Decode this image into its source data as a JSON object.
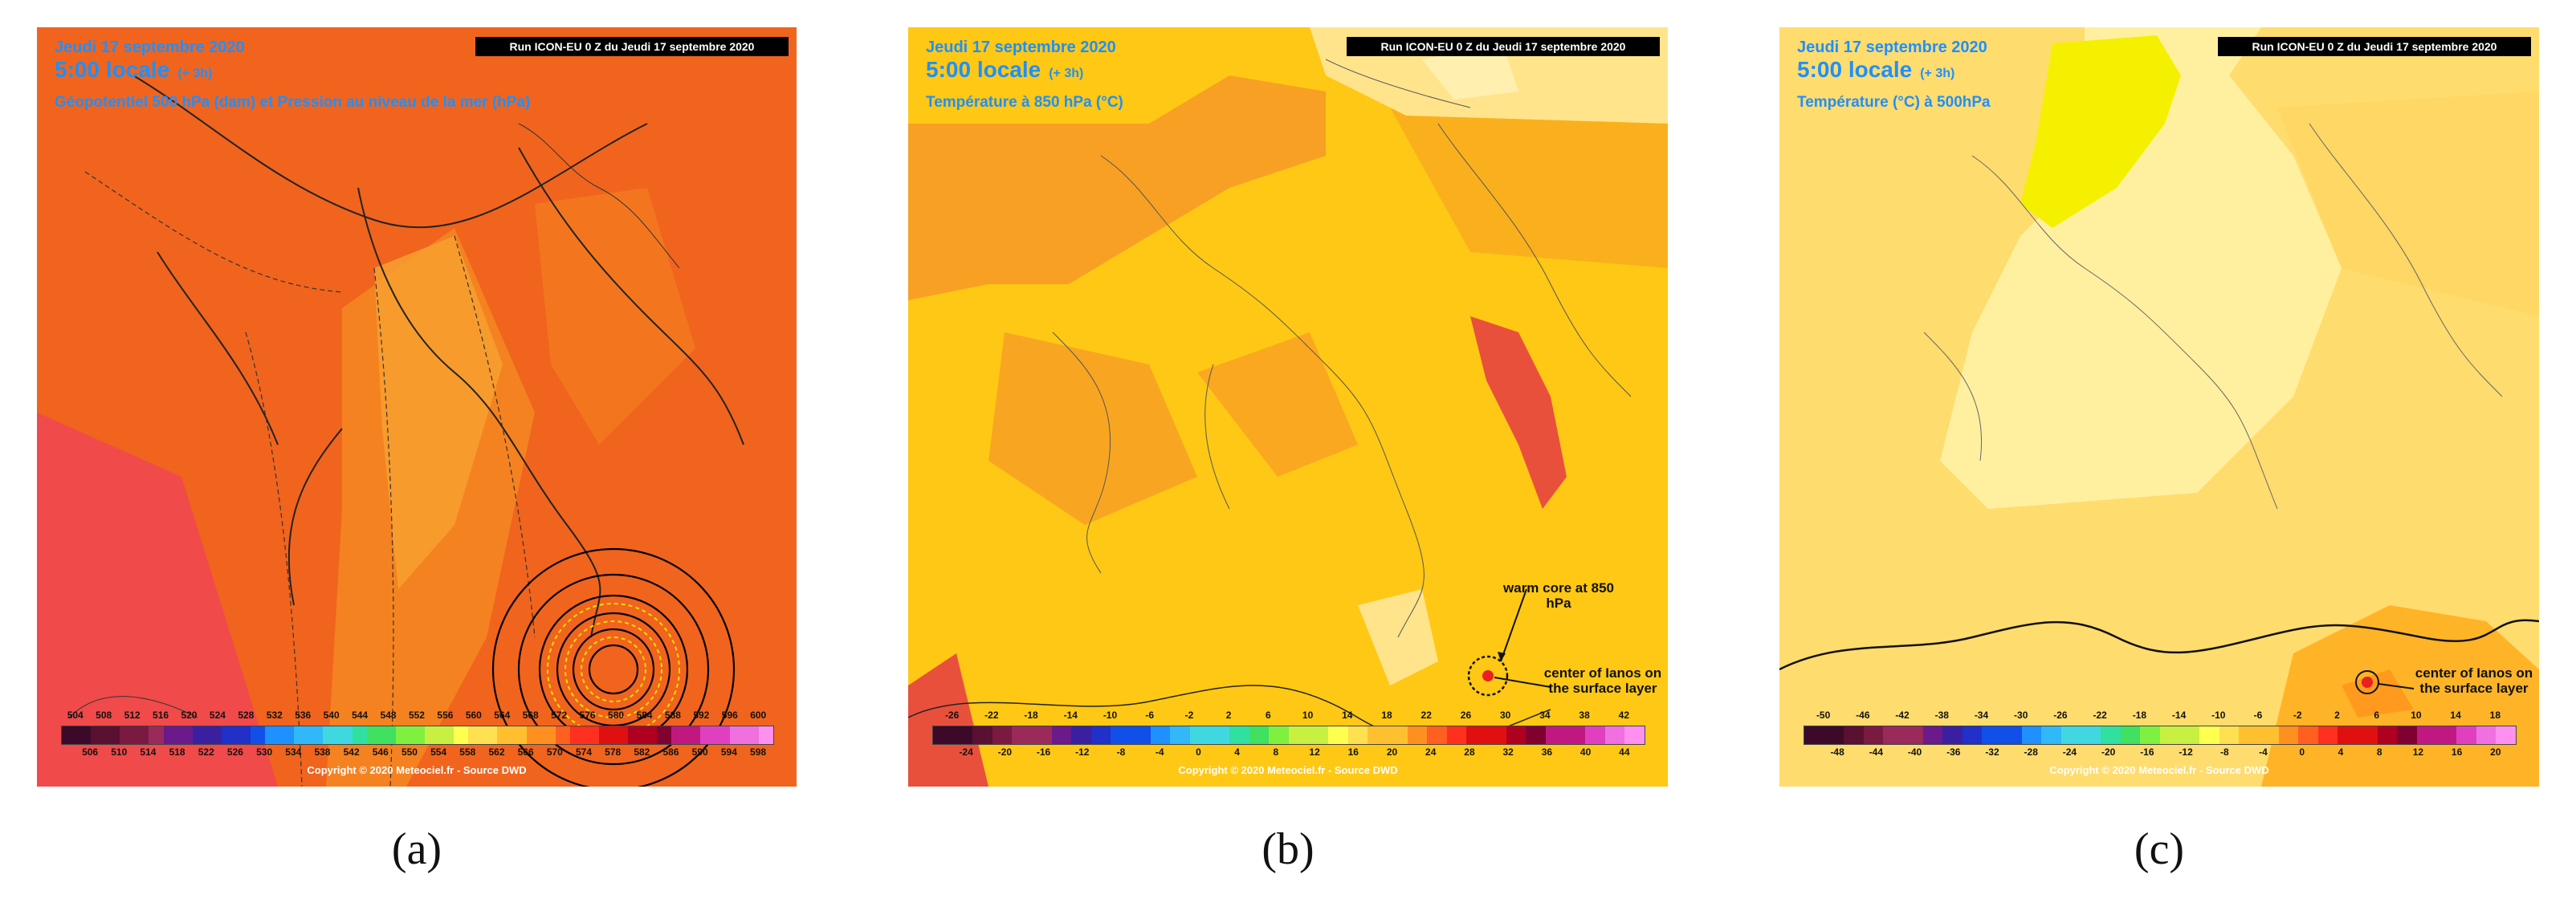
{
  "panels": [
    {
      "id": "a",
      "header": {
        "date": "Jeudi 17 septembre 2020",
        "time": "5:00 locale",
        "lead": "(+ 3h)",
        "field": "Géopotentiel 500 hPa (dam) et Pression au niveau de la mer (hPa)"
      },
      "run_label": "Run ICON-EU 0 Z du Jeudi 17 septembre 2020",
      "colorbar": {
        "top_ticks": [
          "504",
          "508",
          "512",
          "516",
          "520",
          "524",
          "528",
          "532",
          "536",
          "540",
          "544",
          "548",
          "552",
          "556",
          "560",
          "564",
          "568",
          "572",
          "576",
          "580",
          "584",
          "588",
          "592",
          "596",
          "600"
        ],
        "bottom_ticks": [
          "506",
          "510",
          "514",
          "518",
          "522",
          "526",
          "530",
          "534",
          "538",
          "542",
          "546",
          "550",
          "554",
          "558",
          "562",
          "566",
          "570",
          "574",
          "578",
          "582",
          "586",
          "590",
          "594",
          "598"
        ]
      },
      "copyright": "Copyright © 2020 Meteociel.fr - Source DWD",
      "caption": "(a)",
      "colors": {
        "base": "#f0641e",
        "warm": "#f58220",
        "light": "#f7a030",
        "cold": "#f04a4a"
      }
    },
    {
      "id": "b",
      "header": {
        "date": "Jeudi 17 septembre 2020",
        "time": "5:00 locale",
        "lead": "(+ 3h)",
        "field": "Température à 850 hPa (°C)"
      },
      "run_label": "Run ICON-EU 0 Z du Jeudi 17 septembre 2020",
      "colorbar": {
        "top_ticks": [
          "-26",
          "-22",
          "-18",
          "-14",
          "-10",
          "-6",
          "-2",
          "2",
          "6",
          "10",
          "14",
          "18",
          "22",
          "26",
          "30",
          "34",
          "38",
          "42"
        ],
        "bottom_ticks": [
          "-24",
          "-20",
          "-16",
          "-12",
          "-8",
          "-4",
          "0",
          "4",
          "8",
          "12",
          "16",
          "20",
          "24",
          "28",
          "32",
          "36",
          "40",
          "44"
        ]
      },
      "annotations": {
        "warm_core": "warm core at 850 hPa",
        "center": "center of Ianos on the surface layer"
      },
      "copyright": "Copyright © 2020 Meteociel.fr - Source DWD",
      "caption": "(b)",
      "colors": {
        "base": "#ffc814",
        "orange": "#f7a023",
        "pale": "#ffe48c",
        "red": "#e8503c"
      }
    },
    {
      "id": "c",
      "header": {
        "date": "Jeudi 17 septembre 2020",
        "time": "5:00 locale",
        "lead": "(+ 3h)",
        "field": "Température (°C) à 500hPa"
      },
      "run_label": "Run ICON-EU 0 Z du Jeudi 17 septembre 2020",
      "colorbar": {
        "top_ticks": [
          "-50",
          "-46",
          "-42",
          "-38",
          "-34",
          "-30",
          "-26",
          "-22",
          "-18",
          "-14",
          "-10",
          "-6",
          "-2",
          "2",
          "6",
          "10",
          "14",
          "18"
        ],
        "bottom_ticks": [
          "-48",
          "-44",
          "-40",
          "-36",
          "-32",
          "-28",
          "-24",
          "-20",
          "-16",
          "-12",
          "-8",
          "-4",
          "0",
          "4",
          "8",
          "12",
          "16",
          "20"
        ]
      },
      "annotations": {
        "center": "center of Ianos on the surface layer"
      },
      "copyright": "Copyright © 2020 Meteociel.fr - Source DWD",
      "caption": "(c)",
      "colors": {
        "base": "#ffdc6e",
        "pale": "#fff0a0",
        "yellow": "#f5f000",
        "orange": "#ffb428"
      }
    }
  ],
  "colorbar_palette": [
    "#3c0a28",
    "#5a1030",
    "#7a1a40",
    "#9a2a5a",
    "#6a1a8a",
    "#3a20a0",
    "#2030c8",
    "#1050e8",
    "#1e90ff",
    "#30b8f8",
    "#40d8e0",
    "#30e0a0",
    "#40e060",
    "#80f040",
    "#c8f040",
    "#ffff50",
    "#ffe050",
    "#ffc030",
    "#ff9020",
    "#ff6020",
    "#ff3020",
    "#e01010",
    "#b00020",
    "#800030",
    "#c01880",
    "#e040c0",
    "#f070e0",
    "#ff90f0"
  ]
}
